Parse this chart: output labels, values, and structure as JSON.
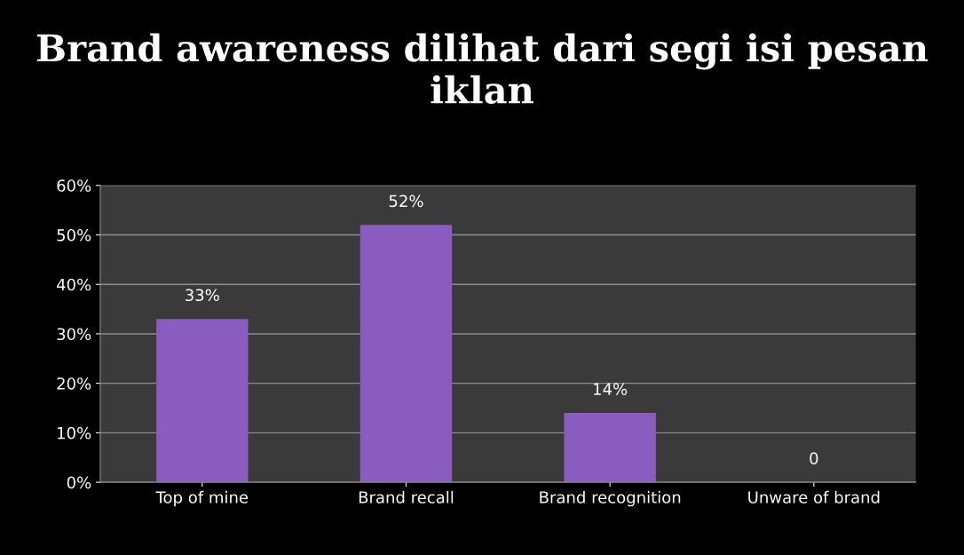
{
  "chart_data": {
    "type": "bar",
    "title": "Brand awareness dilihat dari segi isi pesan iklan",
    "categories": [
      "Top of mine",
      "Brand recall",
      "Brand recognition",
      "Unware of brand"
    ],
    "values": [
      33,
      52,
      14,
      0
    ],
    "color": "#8a5cc0",
    "value_labels": [
      "33%",
      "52%",
      "14%",
      "0"
    ],
    "ylim": [
      0,
      60
    ],
    "yticks": [
      {
        "value": 0,
        "label": "0%"
      },
      {
        "value": 10,
        "label": "10%"
      },
      {
        "value": 20,
        "label": "20%"
      },
      {
        "value": 30,
        "label": "30%"
      },
      {
        "value": 40,
        "label": "40%"
      },
      {
        "value": 50,
        "label": "50%"
      },
      {
        "value": 60,
        "label": "60%"
      }
    ],
    "grid": "y"
  }
}
